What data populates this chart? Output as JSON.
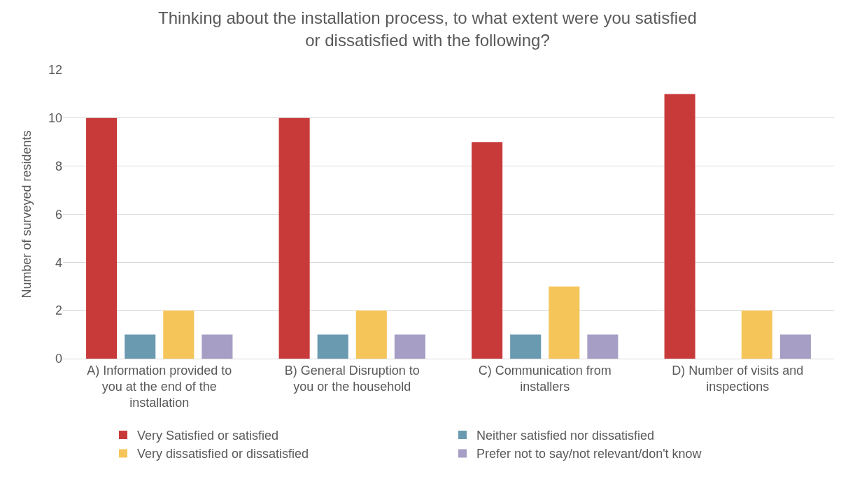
{
  "chart_data": {
    "type": "bar",
    "title": "Thinking about the installation process, to what extent were you satisfied or dissatisfied with the following?",
    "ylabel": "Number of surveyed residents",
    "categories": [
      "A) Information provided to you at the end of the installation",
      "B) General Disruption to you or the household",
      "C) Communication from installers",
      "D) Number of visits and inspections"
    ],
    "series": [
      {
        "name": "Very Satisfied or satisfied",
        "color": "#c83a3a",
        "values": [
          10,
          10,
          9,
          11
        ]
      },
      {
        "name": "Neither satisfied nor dissatisfied",
        "color": "#6a9ab0",
        "values": [
          1,
          1,
          1,
          0
        ]
      },
      {
        "name": "Very dissatisfied or dissatisfied",
        "color": "#f5c55a",
        "values": [
          2,
          2,
          3,
          2
        ]
      },
      {
        "name": "Prefer not to say/not relevant/don't know",
        "color": "#a69ec4",
        "values": [
          1,
          1,
          1,
          1
        ]
      }
    ],
    "ylim": [
      0,
      12
    ],
    "yticks": [
      0,
      2,
      4,
      6,
      8,
      10,
      12
    ],
    "grid": "y",
    "legend": "bottom"
  }
}
